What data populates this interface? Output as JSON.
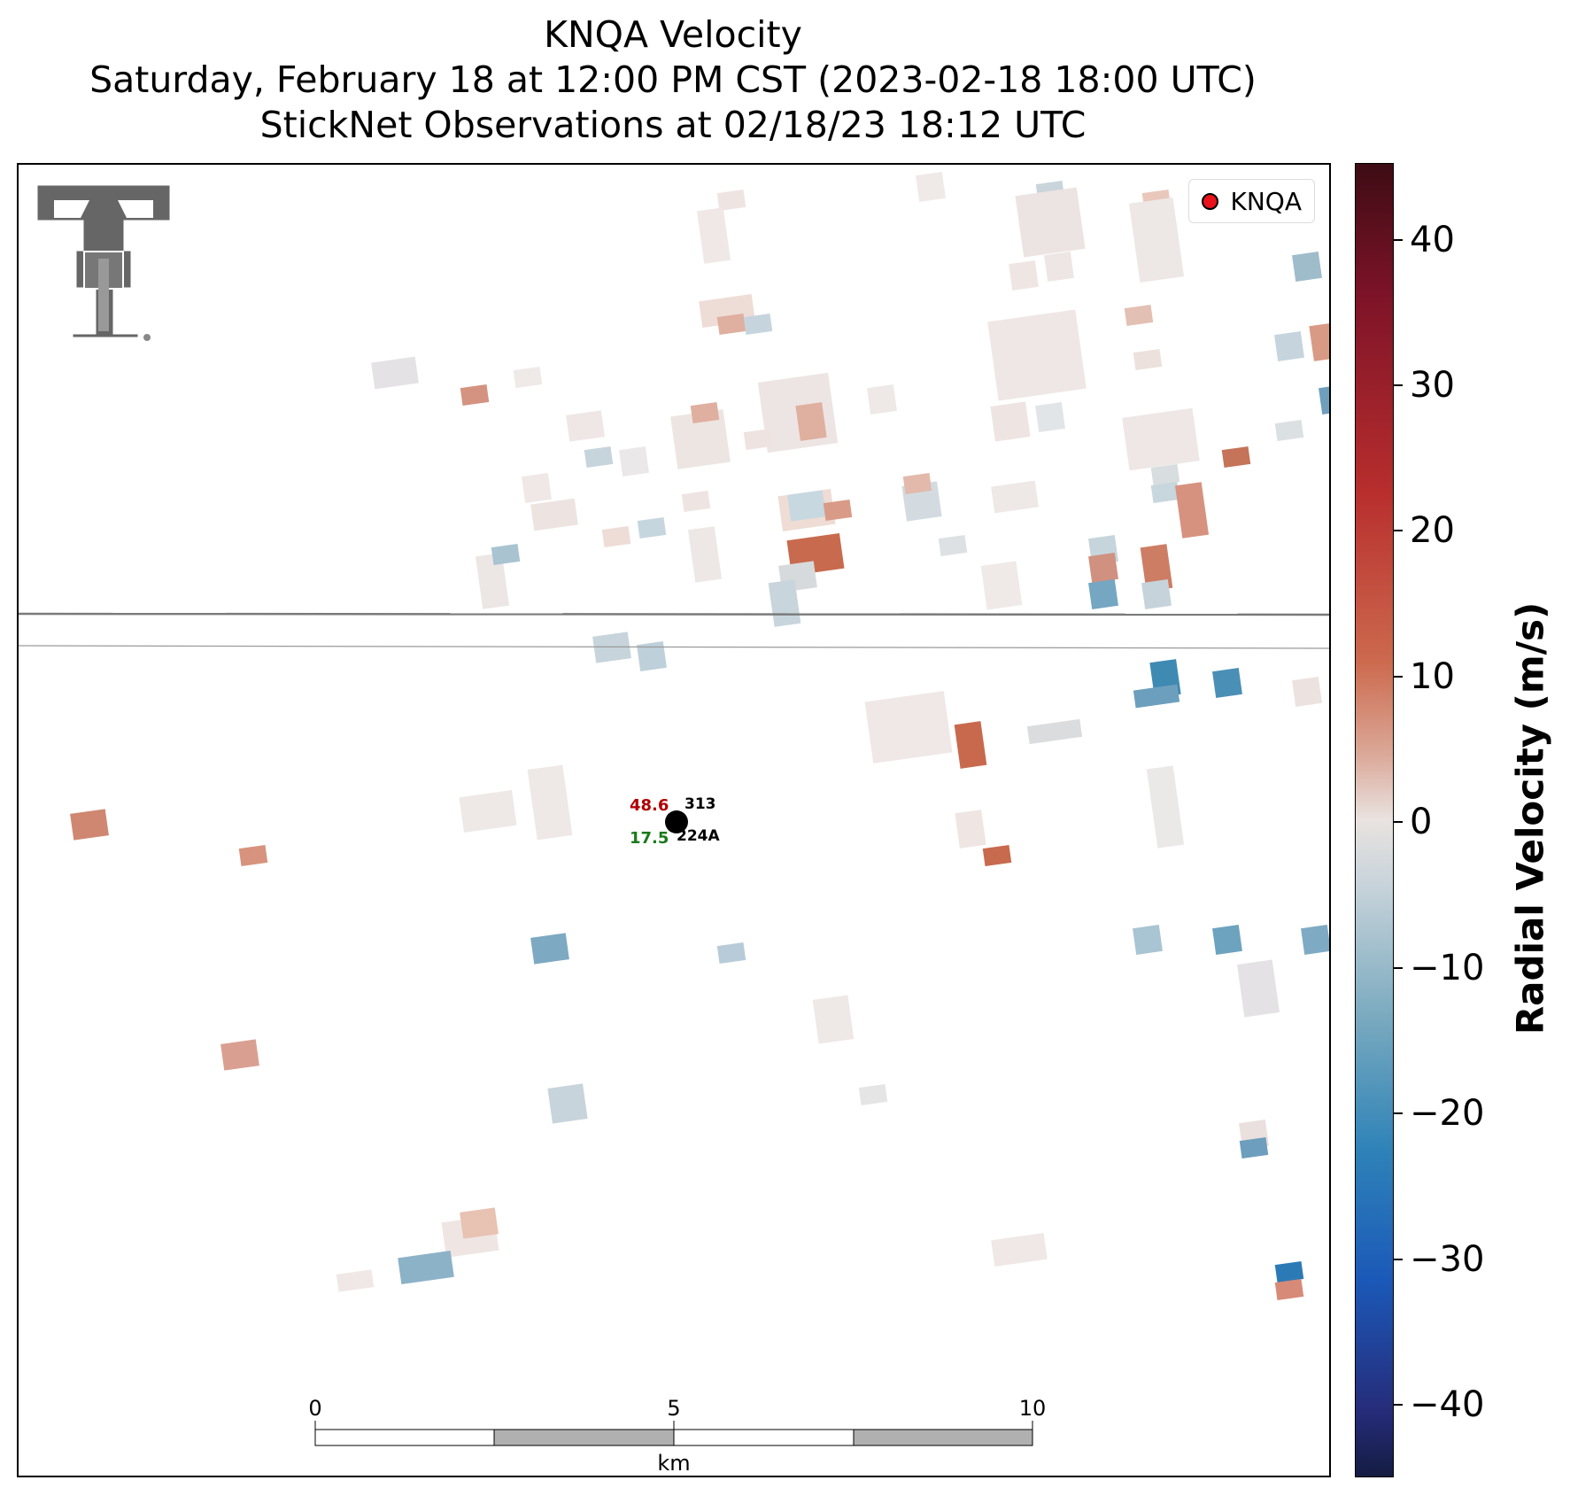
{
  "title": {
    "line1": "KNQA Velocity",
    "line2": "Saturday, February 18 at 12:00 PM CST (2023-02-18 18:00 UTC)",
    "line3": "StickNet Observations at 02/18/23 18:12 UTC"
  },
  "legend": {
    "label": "KNQA",
    "marker_color": "#e8131b"
  },
  "station": {
    "id_top": "313",
    "id_bottom": "224A",
    "value_red": "48.6",
    "value_green": "17.5",
    "red_color": "#b00000",
    "green_color": "#1a7a1a"
  },
  "scale_bar": {
    "ticks": [
      "0",
      "5",
      "10"
    ],
    "unit": "km"
  },
  "colorbar": {
    "title": "Radial Velocity (m/s)",
    "ticks": [
      "40",
      "30",
      "20",
      "10",
      "0",
      "−10",
      "−20",
      "−30",
      "−40"
    ],
    "range": [
      -45,
      45
    ]
  },
  "logo": {
    "name": "texas-tech-double-t-logo"
  },
  "colors": {
    "positive": "#c8583f",
    "negative": "#3a8ab5",
    "neutral": "#ede6e4"
  }
}
